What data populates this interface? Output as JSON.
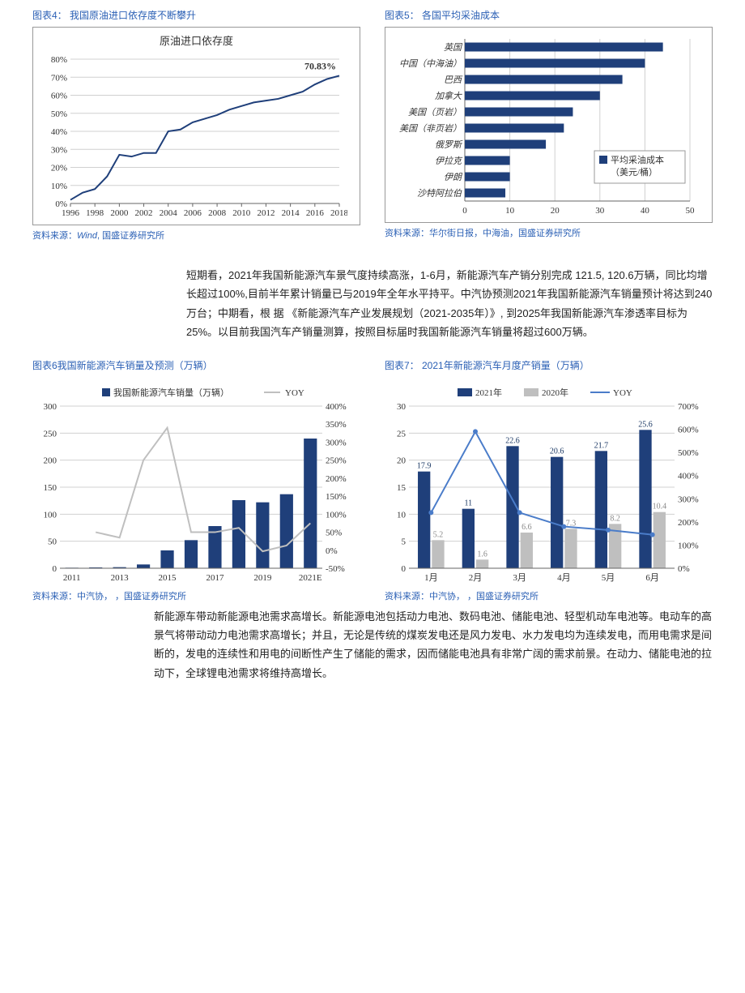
{
  "chart4": {
    "title": "图表4： 我国原油进口依存度不断攀升",
    "inner_title": "原油进口依存度",
    "source": "资料来源：Wind, 国盛证券研究所",
    "type": "line",
    "color_line": "#1f3f7a",
    "grid_color": "#d0d0d0",
    "bg": "#ffffff",
    "years": [
      1996,
      1997,
      1998,
      1999,
      2000,
      2001,
      2002,
      2003,
      2004,
      2005,
      2006,
      2007,
      2008,
      2009,
      2010,
      2011,
      2012,
      2013,
      2014,
      2015,
      2016,
      2017,
      2018
    ],
    "values": [
      2,
      6,
      8,
      15,
      27,
      26,
      28,
      28,
      40,
      41,
      45,
      47,
      49,
      52,
      54,
      56,
      57,
      58,
      60,
      62,
      66,
      69,
      70.83
    ],
    "xticks": [
      1996,
      1998,
      2000,
      2002,
      2004,
      2006,
      2008,
      2010,
      2012,
      2014,
      2016,
      2018
    ],
    "yticks": [
      0,
      10,
      20,
      30,
      40,
      50,
      60,
      70,
      80
    ],
    "end_label": "70.83%",
    "line_width": 2
  },
  "chart5": {
    "title": "图表5： 各国平均采油成本",
    "source": "资料来源：华尔街日报，中海油，国盛证券研究所",
    "type": "hbar",
    "color_bar": "#1f3f7a",
    "grid_color": "#d0d0d0",
    "bg": "#ffffff",
    "categories": [
      "英国",
      "中国（中海油）",
      "巴西",
      "加拿大",
      "美国（页岩）",
      "美国（非页岩）",
      "俄罗斯",
      "伊拉克",
      "伊朗",
      "沙特阿拉伯"
    ],
    "values": [
      44,
      40,
      35,
      30,
      24,
      22,
      18,
      10,
      10,
      9
    ],
    "xlim": [
      0,
      50
    ],
    "xticks": [
      0,
      10,
      20,
      30,
      40,
      50
    ],
    "legend_label": "平均采油成本（美元/桶）",
    "legend_swatch": "#1f3f7a"
  },
  "para1": "短期看，2021年我国新能源汽车景气度持续高涨，1-6月，新能源汽车产销分别完成 121.5,                                120.6万辆，同比均增长超过100%,目前半年累计销量已与2019年全年水平持平。中汽协预测2021年我国新能源汽车销量预计将达到240万台；中期看，根 据 《新能源汽车产业发展规划（2021-2035年）》, 到2025年我国新能源汽车渗透率目标为25%。以目前我国汽车产销量测算，按照目标届时我国新能源汽车销量将超过600万辆。",
  "chart6": {
    "title": "图表6我国新能源汽车销量及预测（万辆）",
    "source": "资料来源：中汽协， ，国盛证券研究所",
    "type": "bar+line",
    "bar_color": "#1f3f7a",
    "line_color": "#bfbfbf",
    "grid_color": "#d0d0d0",
    "legend_bar": "我国新能源汽车销量（万辆）",
    "legend_line": "YOY",
    "years": [
      2011,
      2012,
      2013,
      2014,
      2015,
      2016,
      2017,
      2018,
      2019,
      2020,
      "2021E"
    ],
    "bars": [
      1,
      1.5,
      2,
      7,
      33,
      52,
      78,
      126,
      122,
      137,
      240
    ],
    "yoy": [
      null,
      50,
      35,
      250,
      340,
      50,
      50,
      62,
      -3,
      13,
      75
    ],
    "yleft_ticks": [
      0,
      50,
      100,
      150,
      200,
      250,
      300
    ],
    "yright_ticks": [
      -50,
      0,
      50,
      100,
      150,
      200,
      250,
      300,
      350,
      400
    ],
    "xticks": [
      2011,
      2013,
      2015,
      2017,
      2019,
      "2021E"
    ]
  },
  "chart7": {
    "title": "图表7： 2021年新能源汽车月度产销量（万辆）",
    "source": "资料来源：中汽协， ，国盛证券研究所",
    "type": "grouped-bar+line",
    "color_2021": "#1f3f7a",
    "color_2020": "#bfbfbf",
    "line_color": "#4a7cc9",
    "grid_color": "#d0d0d0",
    "legend_2021": "2021年",
    "legend_2020": "2020年",
    "legend_yoy": "YOY",
    "months": [
      "1月",
      "2月",
      "3月",
      "4月",
      "5月",
      "6月"
    ],
    "v2021": [
      17.9,
      11,
      22.6,
      20.6,
      21.7,
      25.6
    ],
    "v2020": [
      5.2,
      1.6,
      6.6,
      7.3,
      8.2,
      10.4
    ],
    "yoy": [
      240,
      590,
      240,
      180,
      165,
      145
    ],
    "yleft_ticks": [
      0,
      5,
      10,
      15,
      20,
      25,
      30
    ],
    "yright_ticks": [
      0,
      100,
      200,
      300,
      400,
      500,
      600,
      700
    ]
  },
  "para2": "新能源车带动新能源电池需求高增长。新能源电池包括动力电池、数码电池、储能电池、轻型机动车电池等。电动车的高景气将带动动力电池需求高增长；并且，无论是传统的煤炭发电还是风力发电、水力发电均为连续发电，而用电需求是间断的，发电的连续性和用电的间断性产生了储能的需求，因而储能电池具有非常广阔的需求前景。在动力、储能电池的拉动下，全球锂电池需求将维持高增长。"
}
